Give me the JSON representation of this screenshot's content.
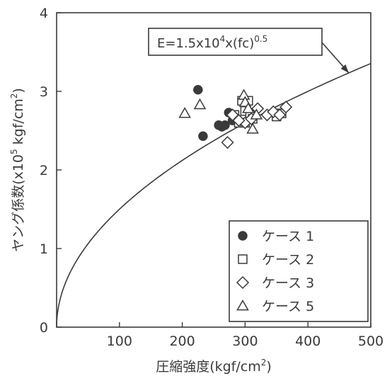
{
  "chart_data": {
    "type": "scatter",
    "xlabel": "圧縮強度(kgf/cm",
    "xlabel_sup": "2",
    "xlabel_close": ")",
    "ylabel": "ヤング係数(x10",
    "ylabel_sup1": "5",
    "ylabel_mid": " kgf/cm",
    "ylabel_sup2": "2",
    "ylabel_close": ")",
    "xlim": [
      0,
      500
    ],
    "ylim": [
      0,
      4
    ],
    "x_ticks": [
      100,
      200,
      300,
      400,
      500
    ],
    "y_ticks": [
      0,
      1,
      2,
      3,
      4
    ],
    "x_tick_labels": [
      "100",
      "200",
      "300",
      "400",
      "500"
    ],
    "y_tick_labels": [
      "0",
      "1",
      "2",
      "3",
      "4"
    ],
    "legend_position": "bottom-right",
    "annotation": {
      "text_main": "E=1.5x10",
      "text_sup1": "4",
      "text_mid": "x(fc)",
      "text_sup2": "0.5",
      "points_to_x": 465
    },
    "curve": {
      "coef": 0.15,
      "exponent": 0.5,
      "x_range": [
        0,
        500
      ]
    },
    "colors": {
      "ink": "#3a3a3a",
      "marker_fill": "#3a3a3a",
      "background": "#ffffff"
    },
    "series": [
      {
        "name": "ケース 1",
        "marker": "filled-circle",
        "x": [
          225,
          233,
          258,
          263,
          268,
          274,
          280
        ],
        "y": [
          3.02,
          2.43,
          2.57,
          2.55,
          2.57,
          2.73,
          2.63
        ]
      },
      {
        "name": "ケース 2",
        "marker": "square",
        "x": [
          283,
          290,
          295,
          300,
          305,
          308,
          312,
          300,
          350,
          358
        ],
        "y": [
          2.7,
          2.6,
          2.88,
          2.75,
          2.88,
          2.7,
          2.65,
          2.6,
          2.68,
          2.72
        ]
      },
      {
        "name": "ケース 3",
        "marker": "diamond",
        "x": [
          272,
          280,
          300,
          320,
          335,
          345,
          355,
          365,
          310,
          290
        ],
        "y": [
          2.35,
          2.7,
          2.6,
          2.78,
          2.7,
          2.74,
          2.7,
          2.8,
          2.65,
          2.63
        ]
      },
      {
        "name": "ケース 5",
        "marker": "triangle",
        "x": [
          204,
          228,
          298,
          300,
          305,
          312,
          318
        ],
        "y": [
          2.72,
          2.83,
          2.95,
          2.86,
          2.78,
          2.52,
          2.7
        ]
      }
    ]
  }
}
